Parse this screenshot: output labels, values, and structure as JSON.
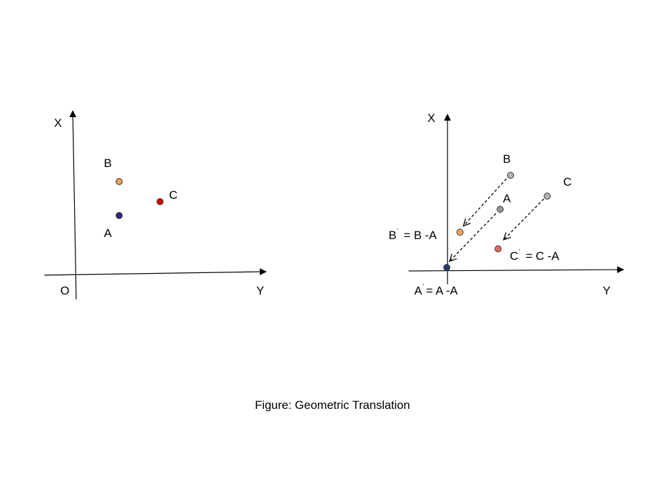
{
  "left_panel": {
    "axis_x_label": "X",
    "axis_y_label": "Y",
    "origin_label": "O",
    "points": [
      {
        "label": "B",
        "color": "#e8a04c"
      },
      {
        "label": "A",
        "color": "#3d1f80"
      },
      {
        "label": "C",
        "color": "#d40000"
      }
    ]
  },
  "right_panel": {
    "axis_x_label": "X",
    "axis_y_label": "Y",
    "original_points": [
      {
        "label": "B",
        "color": "#b3b3b3"
      },
      {
        "label": "A",
        "color": "#999999"
      },
      {
        "label": "C",
        "color": "#b3b3b3"
      }
    ],
    "translated_points": [
      {
        "label": "B",
        "prime": "'",
        "formula": " = B -A",
        "color": "#f2a65a"
      },
      {
        "label": "A",
        "prime": "'",
        "formula": "= A -A",
        "color": "#1f3d7a"
      },
      {
        "label": "C",
        "prime": "'",
        "formula": " = C -A",
        "color": "#e06666"
      }
    ]
  },
  "caption": "Figure: Geometric Translation"
}
